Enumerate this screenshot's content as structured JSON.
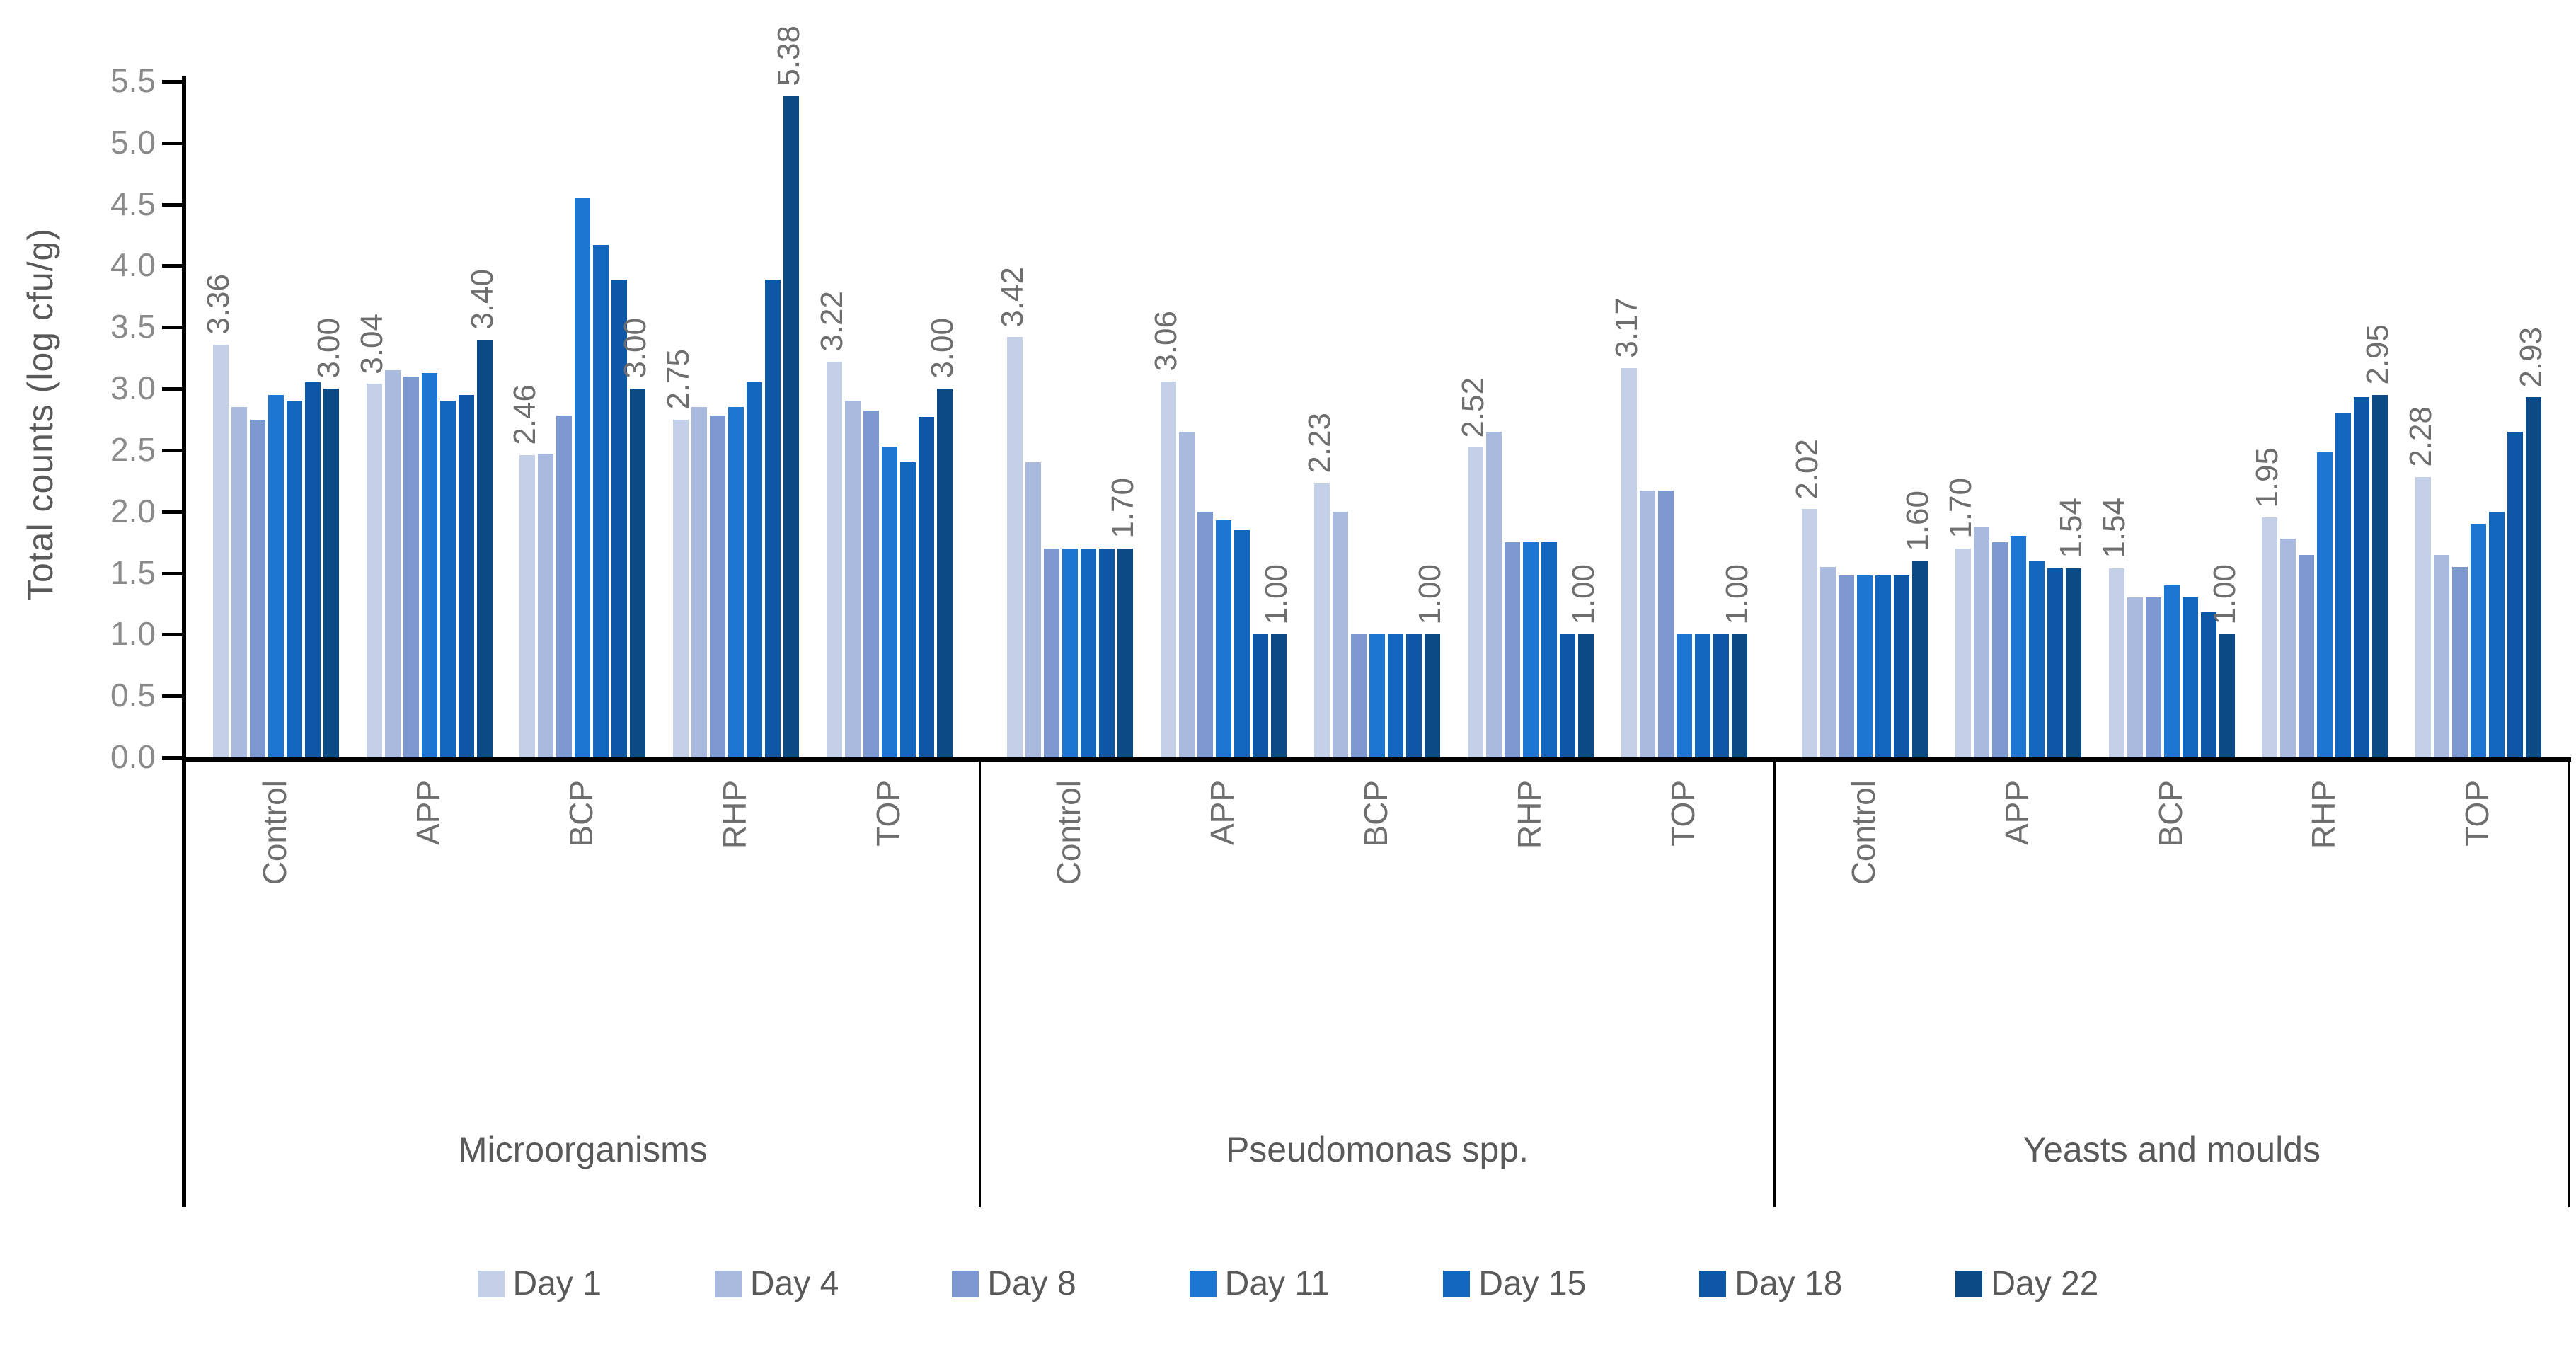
{
  "chart_data": {
    "type": "bar",
    "title": "",
    "xlabel": "",
    "ylabel": "Total counts (log cfu/g)",
    "ylim": [
      0,
      5.5
    ],
    "ytick_step": 0.5,
    "yticks": [
      "0.0",
      "0.5",
      "1.0",
      "1.5",
      "2.0",
      "2.5",
      "3.0",
      "3.5",
      "4.0",
      "4.5",
      "5.0",
      "5.5"
    ],
    "grid": false,
    "legend_position": "bottom",
    "series": [
      {
        "name": "Day 1",
        "color": "#c4cfe8"
      },
      {
        "name": "Day 4",
        "color": "#a9bade"
      },
      {
        "name": "Day 8",
        "color": "#7d97d0"
      },
      {
        "name": "Day 11",
        "color": "#1d76d2"
      },
      {
        "name": "Day 15",
        "color": "#1266bd"
      },
      {
        "name": "Day 18",
        "color": "#0d57a6"
      },
      {
        "name": "Day 22",
        "color": "#0b4a84"
      }
    ],
    "sections": [
      {
        "label": "Microorganisms",
        "groups": [
          {
            "label": "Control",
            "values": [
              3.36,
              2.85,
              2.75,
              2.95,
              2.9,
              3.05,
              3.0
            ],
            "data_labels": {
              "day1": "3.36",
              "day22": "3.00"
            }
          },
          {
            "label": "APP",
            "values": [
              3.04,
              3.15,
              3.1,
              3.13,
              2.9,
              2.95,
              3.4
            ],
            "data_labels": {
              "day1": "3.04",
              "day22": "3.40"
            }
          },
          {
            "label": "BCP",
            "values": [
              2.46,
              2.47,
              2.78,
              4.55,
              4.17,
              3.89,
              3.0
            ],
            "data_labels": {
              "day1": "2.46",
              "day22": "3.00"
            }
          },
          {
            "label": "RHP",
            "values": [
              2.75,
              2.85,
              2.78,
              2.85,
              3.05,
              3.89,
              5.38
            ],
            "data_labels": {
              "day1": "2.75",
              "day22": "5.38"
            }
          },
          {
            "label": "TOP",
            "values": [
              3.22,
              2.9,
              2.82,
              2.53,
              2.4,
              2.77,
              3.0
            ],
            "data_labels": {
              "day1": "3.22",
              "day22": "3.00"
            }
          }
        ]
      },
      {
        "label": "Pseudomonas spp.",
        "groups": [
          {
            "label": "Control",
            "values": [
              3.42,
              2.4,
              1.7,
              1.7,
              1.7,
              1.7,
              1.7
            ],
            "data_labels": {
              "day1": "3.42",
              "day22": "1.70"
            }
          },
          {
            "label": "APP",
            "values": [
              3.06,
              2.65,
              2.0,
              1.93,
              1.85,
              1.0,
              1.0
            ],
            "data_labels": {
              "day1": "3.06",
              "day22": "1.00"
            }
          },
          {
            "label": "BCP",
            "values": [
              2.23,
              2.0,
              1.0,
              1.0,
              1.0,
              1.0,
              1.0
            ],
            "data_labels": {
              "day1": "2.23",
              "day22": "1.00"
            }
          },
          {
            "label": "RHP",
            "values": [
              2.52,
              2.65,
              1.75,
              1.75,
              1.75,
              1.0,
              1.0
            ],
            "data_labels": {
              "day1": "2.52",
              "day22": "1.00"
            }
          },
          {
            "label": "TOP",
            "values": [
              3.17,
              2.17,
              2.17,
              1.0,
              1.0,
              1.0,
              1.0
            ],
            "data_labels": {
              "day1": "3.17",
              "day22": "1.00"
            }
          }
        ]
      },
      {
        "label": "Yeasts and moulds",
        "groups": [
          {
            "label": "Control",
            "values": [
              2.02,
              1.55,
              1.48,
              1.48,
              1.48,
              1.48,
              1.6
            ],
            "data_labels": {
              "day1": "2.02",
              "day22": "1.60"
            }
          },
          {
            "label": "APP",
            "values": [
              1.7,
              1.88,
              1.75,
              1.8,
              1.6,
              1.54,
              1.54
            ],
            "data_labels": {
              "day1": "1.70",
              "day22": "1.54"
            }
          },
          {
            "label": "BCP",
            "values": [
              1.54,
              1.3,
              1.3,
              1.4,
              1.3,
              1.18,
              1.0
            ],
            "data_labels": {
              "day1": "1.54",
              "day22": "1.00"
            }
          },
          {
            "label": "RHP",
            "values": [
              1.95,
              1.78,
              1.65,
              2.48,
              2.8,
              2.93,
              2.95
            ],
            "data_labels": {
              "day1": "1.95",
              "day22": "2.95"
            }
          },
          {
            "label": "TOP",
            "values": [
              2.28,
              1.65,
              1.55,
              1.9,
              2.0,
              2.65,
              2.93
            ],
            "data_labels": {
              "day1": "2.28",
              "day22": "2.93"
            }
          }
        ]
      }
    ]
  }
}
